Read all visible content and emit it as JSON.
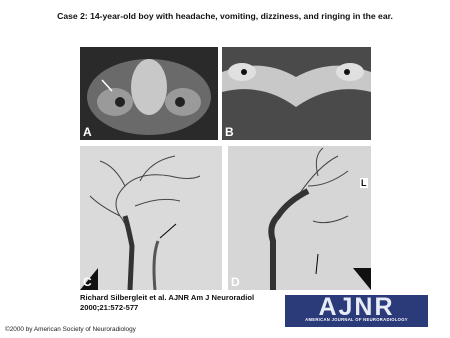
{
  "title": "Case 2: 14-year-old boy with headache, vomiting, dizziness, and ringing in the ear.",
  "panels": [
    {
      "label": "A"
    },
    {
      "label": "B"
    },
    {
      "label": "C"
    },
    {
      "label": "D",
      "marker": "L"
    }
  ],
  "citation": [
    "Richard Silbergleit et al. AJNR Am J Neuroradiol",
    "2000;21:572-577"
  ],
  "logo": {
    "name": "AJNR",
    "subtitle": "AMERICAN JOURNAL OF NEURORADIOLOGY"
  },
  "copyright": "©2000 by American Society of Neuroradiology"
}
